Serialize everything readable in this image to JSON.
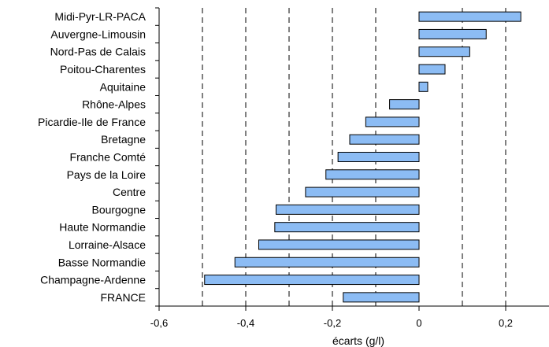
{
  "chart_data": {
    "type": "bar",
    "orientation": "horizontal",
    "categories": [
      "Midi-Pyr-LR-PACA",
      "Auvergne-Limousin",
      "Nord-Pas de Calais",
      "Poitou-Charentes",
      "Aquitaine",
      "Rhône-Alpes",
      "Picardie-Ile de France",
      "Bretagne",
      "Franche Comté",
      "Pays de la Loire",
      "Centre",
      "Bourgogne",
      "Haute Normandie",
      "Lorraine-Alsace",
      "Basse Normandie",
      "Champagne-Ardenne",
      "FRANCE"
    ],
    "values": [
      0.235,
      0.155,
      0.117,
      0.06,
      0.02,
      -0.068,
      -0.123,
      -0.16,
      -0.187,
      -0.215,
      -0.262,
      -0.33,
      -0.333,
      -0.37,
      -0.425,
      -0.495,
      -0.175
    ],
    "xlabel": "écarts (g/l)",
    "ylabel": "",
    "title": "",
    "xlim": [
      -0.6,
      0.3
    ],
    "xticks": [
      -0.6,
      -0.4,
      -0.2,
      0,
      0.2
    ],
    "xtick_labels": [
      "-0,6",
      "-0,4",
      "-0,2",
      "0",
      "0,2"
    ],
    "gridlines_x": [
      -0.5,
      -0.4,
      -0.3,
      -0.2,
      -0.1,
      0.1,
      0.2
    ],
    "grid": "vertical dashed",
    "bar_color": "#8cbcf4",
    "bar_edge_color": "#000000"
  }
}
